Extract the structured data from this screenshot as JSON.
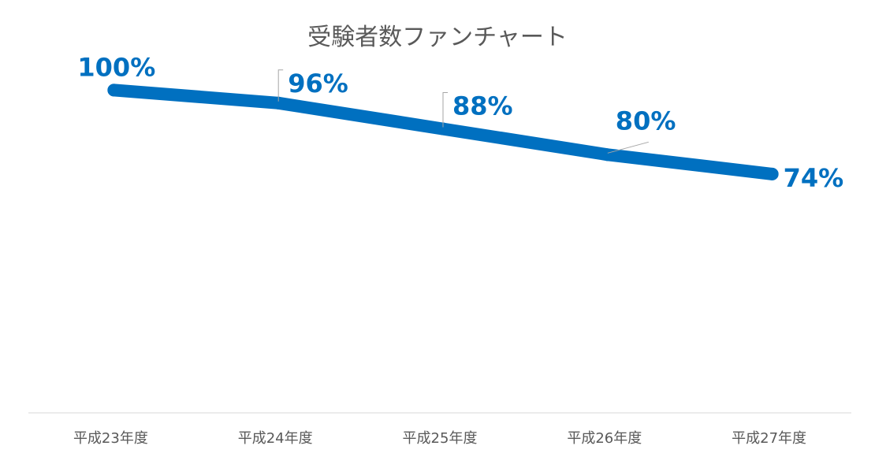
{
  "chart_data": {
    "type": "line",
    "title": "受験者数ファンチャート",
    "categories": [
      "平成23年度",
      "平成24年度",
      "平成25年度",
      "平成26年度",
      "平成27年度"
    ],
    "series": [
      {
        "values": [
          100,
          96,
          88,
          80,
          74
        ]
      }
    ],
    "data_labels": [
      "100%",
      "96%",
      "88%",
      "80%",
      "74%"
    ],
    "ylim": [
      0,
      125
    ],
    "grid": false,
    "legend": "none",
    "colors": {
      "line": "#0070C0",
      "label": "#0070C0",
      "axis": "#D9D9D9",
      "tick_text": "#595959",
      "leader": "#A6A6A6"
    }
  }
}
